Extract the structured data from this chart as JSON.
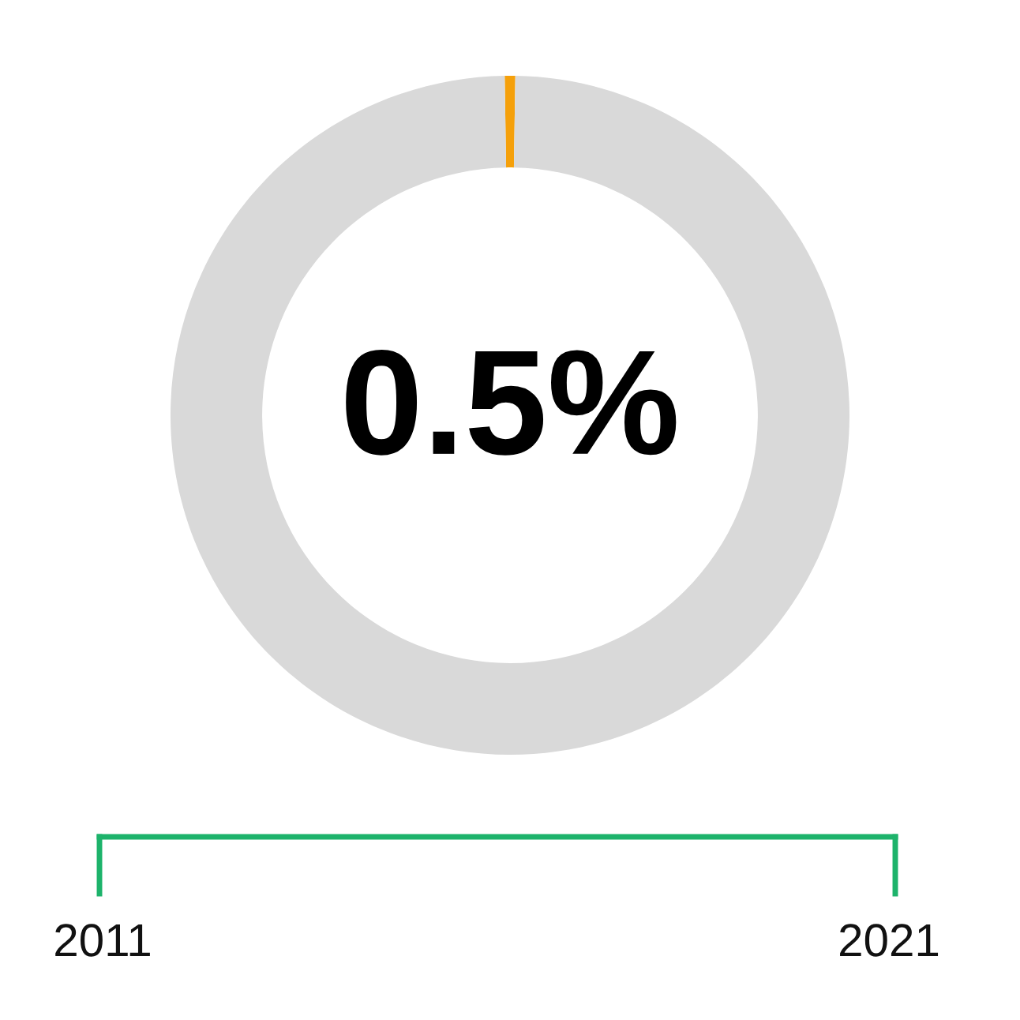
{
  "chart_data": {
    "type": "donut",
    "categories": [
      null,
      null
    ],
    "values": [
      0.5,
      99.5
    ],
    "colors": [
      "#f5a00a",
      "#d9d9d9"
    ],
    "annotations": [
      "0.5%",
      "2011",
      "2021"
    ]
  }
}
